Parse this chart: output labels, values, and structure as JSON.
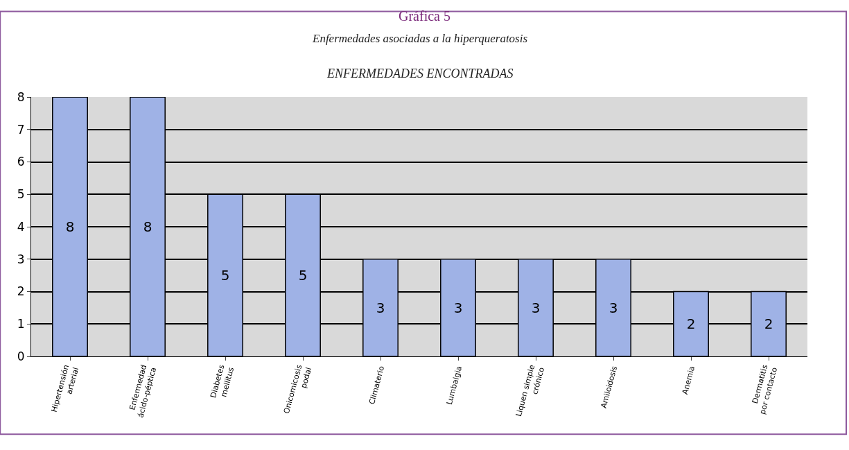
{
  "chart_data": {
    "type": "bar",
    "title": "Gráfica 5",
    "subtitle": "Enfermedades asociadas a la hiperqueratosis",
    "annotations": [
      "ENFERMEDADES ENCONTRADAS"
    ],
    "categories": [
      "Hipertensión arterial",
      "Enfermedad ácido-péptica",
      "Diabetes mellitus",
      "Onicomicosis podal",
      "Climaterio",
      "Lumbalgia",
      "Liquen simple crónico",
      "Amiloidosis",
      "Anemia",
      "Dermatitis por contacto"
    ],
    "values": [
      8,
      8,
      5,
      5,
      3,
      3,
      3,
      3,
      2,
      2
    ],
    "color": "#9fb2e6",
    "ylim": [
      0,
      8
    ],
    "yticks": [
      0,
      1,
      2,
      3,
      4,
      5,
      6,
      7,
      8
    ],
    "grid": "y",
    "data_labels": true
  }
}
